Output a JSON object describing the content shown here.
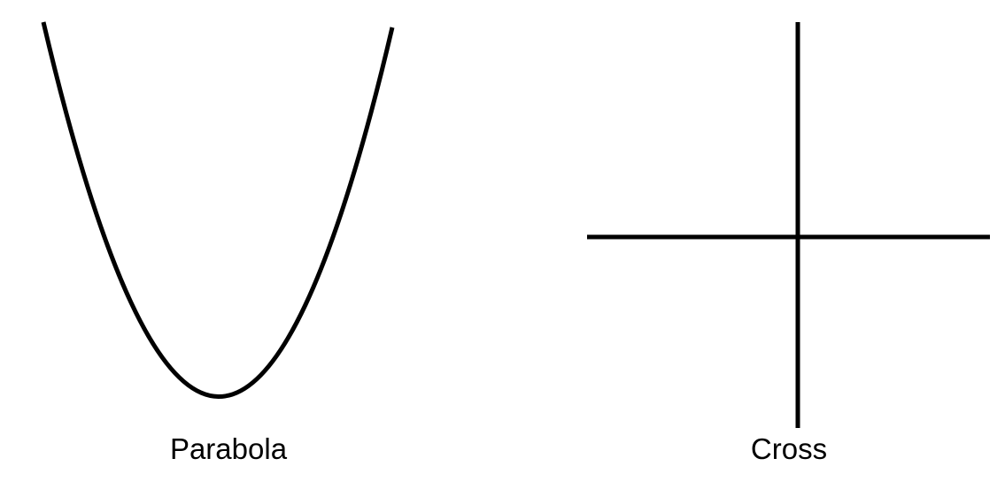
{
  "panels": {
    "parabola": {
      "caption": "Parabola"
    },
    "cross": {
      "caption": "Cross"
    }
  },
  "colors": {
    "stroke": "#000000",
    "background": "#ffffff"
  }
}
